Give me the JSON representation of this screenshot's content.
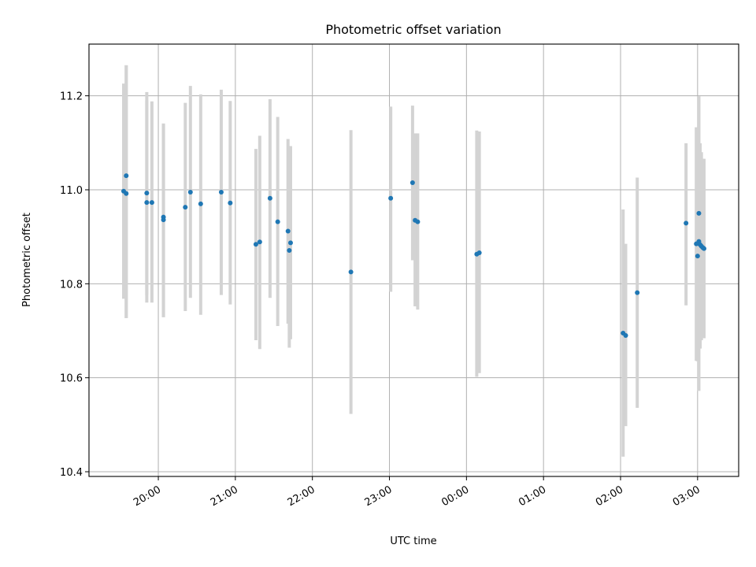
{
  "chart_data": {
    "type": "scatter",
    "title": "Photometric offset variation",
    "xlabel": "UTC time",
    "ylabel": "Photometric offset",
    "x_unit": "UTC time (hours, continuing past midnight)",
    "xlim": [
      "19:06",
      "27:32"
    ],
    "ylim": [
      10.39,
      11.31
    ],
    "x_ticks": [
      {
        "value": "20:00",
        "label": "20:00"
      },
      {
        "value": "21:00",
        "label": "21:00"
      },
      {
        "value": "22:00",
        "label": "22:00"
      },
      {
        "value": "23:00",
        "label": "23:00"
      },
      {
        "value": "24:00",
        "label": "00:00"
      },
      {
        "value": "25:00",
        "label": "01:00"
      },
      {
        "value": "26:00",
        "label": "02:00"
      },
      {
        "value": "27:00",
        "label": "03:00"
      }
    ],
    "y_ticks": [
      10.4,
      10.6,
      10.8,
      11.0,
      11.2
    ],
    "grid": true,
    "marker_color": "#1f77b4",
    "errorbar_color": "#d3d3d3",
    "series": [
      {
        "points": [
          {
            "t": "19:33",
            "y": 10.997,
            "lo": 10.768,
            "hi": 11.226
          },
          {
            "t": "19:35",
            "y": 10.992,
            "lo": 10.727,
            "hi": 11.265
          },
          {
            "t": "19:35",
            "y": 11.03,
            "lo": 10.727,
            "hi": 11.265
          },
          {
            "t": "19:51",
            "y": 10.993,
            "lo": 10.776,
            "hi": 11.208
          },
          {
            "t": "19:51",
            "y": 10.973,
            "lo": 10.76,
            "hi": 11.19
          },
          {
            "t": "19:55",
            "y": 10.973,
            "lo": 10.76,
            "hi": 11.188
          },
          {
            "t": "20:04",
            "y": 10.942,
            "lo": 10.729,
            "hi": 11.141
          },
          {
            "t": "20:04",
            "y": 10.936,
            "lo": 10.729,
            "hi": 11.141
          },
          {
            "t": "20:21",
            "y": 10.963,
            "lo": 10.742,
            "hi": 11.185
          },
          {
            "t": "20:25",
            "y": 10.995,
            "lo": 10.77,
            "hi": 11.221
          },
          {
            "t": "20:33",
            "y": 10.97,
            "lo": 10.734,
            "hi": 11.203
          },
          {
            "t": "20:49",
            "y": 10.995,
            "lo": 10.776,
            "hi": 11.213
          },
          {
            "t": "20:56",
            "y": 10.972,
            "lo": 10.756,
            "hi": 11.189
          },
          {
            "t": "21:16",
            "y": 10.884,
            "lo": 10.68,
            "hi": 11.087
          },
          {
            "t": "21:19",
            "y": 10.889,
            "lo": 10.661,
            "hi": 11.115
          },
          {
            "t": "21:27",
            "y": 10.982,
            "lo": 10.77,
            "hi": 11.193
          },
          {
            "t": "21:33",
            "y": 10.932,
            "lo": 10.71,
            "hi": 11.155
          },
          {
            "t": "21:41",
            "y": 10.912,
            "lo": 10.715,
            "hi": 11.108
          },
          {
            "t": "21:42",
            "y": 10.871,
            "lo": 10.664,
            "hi": 11.08
          },
          {
            "t": "21:43",
            "y": 10.887,
            "lo": 10.682,
            "hi": 11.093
          },
          {
            "t": "22:30",
            "y": 10.825,
            "lo": 10.523,
            "hi": 11.127
          },
          {
            "t": "23:01",
            "y": 10.982,
            "lo": 10.783,
            "hi": 11.177
          },
          {
            "t": "23:18",
            "y": 11.015,
            "lo": 10.85,
            "hi": 11.179
          },
          {
            "t": "23:20",
            "y": 10.935,
            "lo": 10.752,
            "hi": 11.12
          },
          {
            "t": "23:22",
            "y": 10.932,
            "lo": 10.745,
            "hi": 11.12
          },
          {
            "t": "24:08",
            "y": 10.863,
            "lo": 10.602,
            "hi": 11.126
          },
          {
            "t": "24:10",
            "y": 10.866,
            "lo": 10.61,
            "hi": 11.124
          },
          {
            "t": "26:02",
            "y": 10.695,
            "lo": 10.432,
            "hi": 10.958
          },
          {
            "t": "26:04",
            "y": 10.69,
            "lo": 10.497,
            "hi": 10.885
          },
          {
            "t": "26:13",
            "y": 10.781,
            "lo": 10.536,
            "hi": 11.026
          },
          {
            "t": "26:51",
            "y": 10.929,
            "lo": 10.754,
            "hi": 11.099
          },
          {
            "t": "26:59",
            "y": 10.885,
            "lo": 10.636,
            "hi": 11.133
          },
          {
            "t": "27:00",
            "y": 10.859,
            "lo": 10.635,
            "hi": 11.084
          },
          {
            "t": "27:01",
            "y": 10.95,
            "lo": 10.702,
            "hi": 11.199
          },
          {
            "t": "27:01",
            "y": 10.89,
            "lo": 10.572,
            "hi": 11.199
          },
          {
            "t": "27:02",
            "y": 10.883,
            "lo": 10.662,
            "hi": 11.099
          },
          {
            "t": "27:03",
            "y": 10.88,
            "lo": 10.68,
            "hi": 11.08
          },
          {
            "t": "27:04",
            "y": 10.877,
            "lo": 10.684,
            "hi": 11.066
          },
          {
            "t": "27:05",
            "y": 10.875,
            "lo": 10.684,
            "hi": 11.066
          }
        ]
      }
    ]
  }
}
